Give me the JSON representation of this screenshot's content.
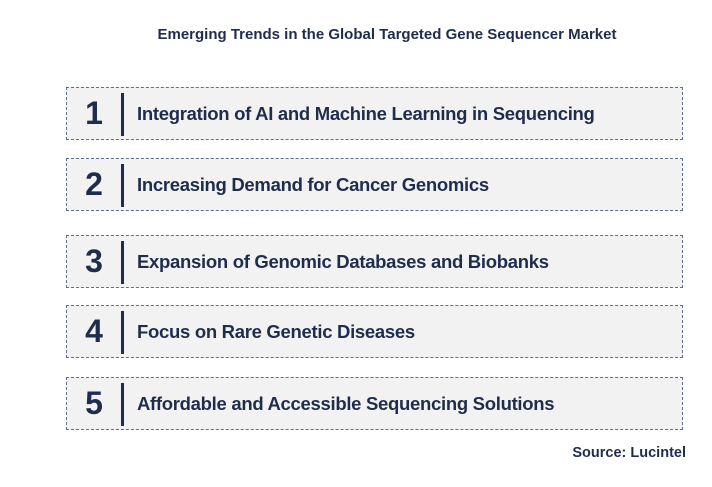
{
  "title": "Emerging Trends in the Global Targeted Gene Sequencer Market",
  "items": [
    {
      "number": 1,
      "label": "Integration of AI and Machine Learning in Sequencing"
    },
    {
      "number": 2,
      "label": "Increasing Demand for Cancer Genomics"
    },
    {
      "number": 3,
      "label": "Expansion of Genomic Databases and Biobanks"
    },
    {
      "number": 4,
      "label": "Focus on Rare Genetic Diseases"
    },
    {
      "number": 5,
      "label": "Affordable and Accessible Sequencing Solutions"
    }
  ],
  "source": "Source: Lucintel"
}
